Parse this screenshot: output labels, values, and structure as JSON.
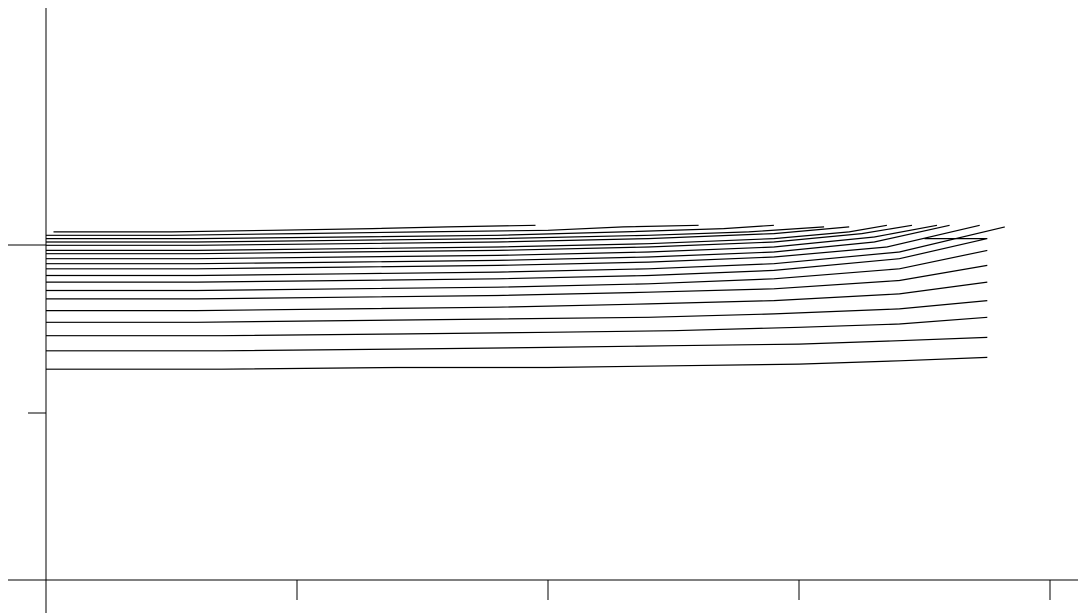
{
  "chart_data": {
    "type": "line",
    "title": "",
    "xlabel": "",
    "ylabel": "",
    "xlim": [
      0,
      4
    ],
    "ylim": [
      -1,
      2
    ],
    "grid": false,
    "legend": "none",
    "x_ticks": [
      0,
      1,
      2,
      3,
      4
    ],
    "y_ticks": [
      0,
      1
    ],
    "series": [
      {
        "x": [
          0.03,
          0.5,
          0.9,
          1.3,
          1.6,
          1.95
        ],
        "y": [
          1.08,
          1.08,
          1.09,
          1.1,
          1.11,
          1.12
        ]
      },
      {
        "x": [
          0.0,
          0.5,
          1.0,
          1.5,
          2.0,
          2.3,
          2.6
        ],
        "y": [
          1.06,
          1.06,
          1.07,
          1.08,
          1.09,
          1.11,
          1.12
        ]
      },
      {
        "x": [
          0.0,
          0.6,
          1.2,
          1.8,
          2.3,
          2.7,
          2.9
        ],
        "y": [
          1.04,
          1.04,
          1.05,
          1.06,
          1.08,
          1.1,
          1.12
        ]
      },
      {
        "x": [
          0.0,
          0.6,
          1.2,
          1.8,
          2.4,
          2.8,
          3.1
        ],
        "y": [
          1.02,
          1.02,
          1.03,
          1.04,
          1.06,
          1.08,
          1.11
        ]
      },
      {
        "x": [
          0.0,
          0.6,
          1.2,
          1.8,
          2.4,
          2.9,
          3.2
        ],
        "y": [
          1.0,
          1.0,
          1.01,
          1.02,
          1.04,
          1.07,
          1.11
        ]
      },
      {
        "x": [
          0.0,
          0.6,
          1.2,
          1.8,
          2.4,
          2.9,
          3.2,
          3.35
        ],
        "y": [
          0.97,
          0.97,
          0.98,
          0.99,
          1.01,
          1.04,
          1.08,
          1.12
        ]
      },
      {
        "x": [
          0.0,
          0.6,
          1.2,
          1.8,
          2.4,
          2.9,
          3.25,
          3.45
        ],
        "y": [
          0.95,
          0.95,
          0.96,
          0.97,
          0.99,
          1.02,
          1.07,
          1.12
        ]
      },
      {
        "x": [
          0.0,
          0.6,
          1.2,
          1.8,
          2.4,
          2.9,
          3.3,
          3.55
        ],
        "y": [
          0.92,
          0.92,
          0.93,
          0.94,
          0.96,
          0.99,
          1.05,
          1.12
        ]
      },
      {
        "x": [
          0.0,
          0.6,
          1.2,
          1.8,
          2.4,
          2.9,
          3.3,
          3.6
        ],
        "y": [
          0.89,
          0.89,
          0.9,
          0.91,
          0.93,
          0.96,
          1.02,
          1.12
        ]
      },
      {
        "x": [
          0.0,
          0.6,
          1.2,
          1.8,
          2.4,
          2.9,
          3.35,
          3.72
        ],
        "y": [
          0.86,
          0.86,
          0.87,
          0.88,
          0.9,
          0.93,
          0.99,
          1.12
        ]
      },
      {
        "x": [
          0.0,
          0.6,
          1.2,
          1.8,
          2.4,
          2.9,
          3.4,
          3.82
        ],
        "y": [
          0.82,
          0.82,
          0.83,
          0.84,
          0.86,
          0.89,
          0.96,
          1.11
        ]
      },
      {
        "x": [
          0.0,
          0.6,
          1.2,
          1.8,
          2.4,
          2.9,
          3.4,
          3.75,
          3.5
        ],
        "y": [
          0.78,
          0.78,
          0.79,
          0.8,
          0.82,
          0.85,
          0.92,
          1.04,
          1.04
        ]
      },
      {
        "x": [
          0.0,
          0.6,
          1.2,
          1.8,
          2.4,
          2.9,
          3.4,
          3.75
        ],
        "y": [
          0.73,
          0.73,
          0.74,
          0.75,
          0.77,
          0.8,
          0.86,
          0.97
        ]
      },
      {
        "x": [
          0.0,
          0.6,
          1.2,
          1.8,
          2.4,
          2.9,
          3.4,
          3.75
        ],
        "y": [
          0.68,
          0.68,
          0.69,
          0.7,
          0.72,
          0.74,
          0.79,
          0.88
        ]
      },
      {
        "x": [
          0.0,
          0.6,
          1.2,
          1.8,
          2.4,
          2.9,
          3.4,
          3.75
        ],
        "y": [
          0.61,
          0.61,
          0.62,
          0.63,
          0.65,
          0.67,
          0.71,
          0.78
        ]
      },
      {
        "x": [
          0.0,
          0.6,
          1.2,
          1.8,
          2.4,
          2.9,
          3.4,
          3.75
        ],
        "y": [
          0.54,
          0.54,
          0.55,
          0.56,
          0.57,
          0.59,
          0.62,
          0.67
        ]
      },
      {
        "x": [
          0.0,
          0.7,
          1.4,
          2.0,
          2.5,
          3.0,
          3.4,
          3.75
        ],
        "y": [
          0.46,
          0.46,
          0.47,
          0.48,
          0.49,
          0.51,
          0.53,
          0.57
        ]
      },
      {
        "x": [
          0.0,
          0.7,
          1.4,
          2.0,
          2.5,
          3.0,
          3.4,
          3.75
        ],
        "y": [
          0.37,
          0.37,
          0.38,
          0.39,
          0.4,
          0.41,
          0.43,
          0.45
        ]
      },
      {
        "x": [
          0.0,
          0.7,
          1.4,
          2.0,
          2.5,
          3.0,
          3.4,
          3.75
        ],
        "y": [
          0.26,
          0.26,
          0.27,
          0.27,
          0.28,
          0.29,
          0.31,
          0.33
        ]
      }
    ]
  }
}
